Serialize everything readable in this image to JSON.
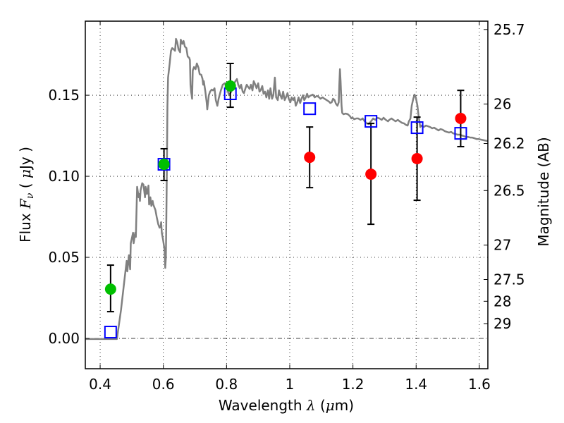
{
  "chart_data": {
    "type": "scatter",
    "title": "",
    "xlabel": "Wavelength  λ (μm)",
    "xlabel_parts": {
      "prefix": "Wavelength  ",
      "symbol": "λ",
      "suffix_open": " (",
      "unit_symbol": "μ",
      "unit_rest": "m)"
    },
    "ylabel": "Flux  Fν  ( μJy )",
    "ylabel_parts": {
      "prefix": "Flux  ",
      "symbol": "F",
      "subscript": "ν",
      "mid": "  ( ",
      "unit_symbol": "μ",
      "unit_rest": "Jy )"
    },
    "ylabel_right": "Magnitude (AB)",
    "xlim": [
      0.353,
      1.627
    ],
    "ylim": [
      -0.0187,
      0.1957
    ],
    "grid": true,
    "legend": "none",
    "x_ticks": [
      {
        "value": 0.4,
        "label": "0.4"
      },
      {
        "value": 0.6,
        "label": "0.6"
      },
      {
        "value": 0.8,
        "label": "0.8"
      },
      {
        "value": 1.0,
        "label": "1"
      },
      {
        "value": 1.2,
        "label": "1.2"
      },
      {
        "value": 1.4,
        "label": "1.4"
      },
      {
        "value": 1.6,
        "label": "1.6"
      }
    ],
    "y_ticks": [
      {
        "value": 0.0,
        "label": "0.00"
      },
      {
        "value": 0.05,
        "label": "0.05"
      },
      {
        "value": 0.1,
        "label": "0.10"
      },
      {
        "value": 0.15,
        "label": "0.15"
      }
    ],
    "right_ticks": [
      {
        "mag": 25.7,
        "label": "25.7"
      },
      {
        "mag": 26.0,
        "label": "26"
      },
      {
        "mag": 26.2,
        "label": "26.2"
      },
      {
        "mag": 26.5,
        "label": "26.5"
      },
      {
        "mag": 27.0,
        "label": "27"
      },
      {
        "mag": 27.5,
        "label": "27.5"
      },
      {
        "mag": 28.0,
        "label": "28"
      },
      {
        "mag": 29.0,
        "label": "29"
      }
    ],
    "ab_zeropoint_ujy": 23.9,
    "colors": {
      "spectrum": "#808080",
      "green": "#00bf00",
      "red": "#ff0000",
      "blue": "#0000ff",
      "errorbar": "#000000"
    },
    "series": [
      {
        "name": "model spectrum",
        "kind": "line",
        "points": [
          [
            0.353,
            -0.0004
          ],
          [
            0.453,
            -0.0004
          ],
          [
            0.466,
            0.0174
          ],
          [
            0.48,
            0.0413
          ],
          [
            0.484,
            0.0478
          ],
          [
            0.486,
            0.0413
          ],
          [
            0.491,
            0.0513
          ],
          [
            0.495,
            0.0426
          ],
          [
            0.497,
            0.0587
          ],
          [
            0.504,
            0.0652
          ],
          [
            0.506,
            0.0587
          ],
          [
            0.511,
            0.0652
          ],
          [
            0.513,
            0.0626
          ],
          [
            0.517,
            0.0935
          ],
          [
            0.522,
            0.087
          ],
          [
            0.524,
            0.0891
          ],
          [
            0.526,
            0.0848
          ],
          [
            0.528,
            0.0913
          ],
          [
            0.533,
            0.0957
          ],
          [
            0.537,
            0.0948
          ],
          [
            0.542,
            0.087
          ],
          [
            0.544,
            0.0935
          ],
          [
            0.548,
            0.0891
          ],
          [
            0.553,
            0.0943
          ],
          [
            0.555,
            0.0826
          ],
          [
            0.559,
            0.087
          ],
          [
            0.562,
            0.0817
          ],
          [
            0.566,
            0.0848
          ],
          [
            0.568,
            0.0826
          ],
          [
            0.575,
            0.0791
          ],
          [
            0.579,
            0.0748
          ],
          [
            0.584,
            0.0704
          ],
          [
            0.588,
            0.0683
          ],
          [
            0.591,
            0.0687
          ],
          [
            0.593,
            0.0717
          ],
          [
            0.595,
            0.0652
          ],
          [
            0.599,
            0.0609
          ],
          [
            0.604,
            0.0543
          ],
          [
            0.606,
            0.0435
          ],
          [
            0.608,
            0.05
          ],
          [
            0.611,
            0.0998
          ],
          [
            0.613,
            0.1435
          ],
          [
            0.615,
            0.1609
          ],
          [
            0.62,
            0.1696
          ],
          [
            0.624,
            0.1774
          ],
          [
            0.628,
            0.1791
          ],
          [
            0.633,
            0.1783
          ],
          [
            0.637,
            0.1774
          ],
          [
            0.64,
            0.1848
          ],
          [
            0.644,
            0.1826
          ],
          [
            0.648,
            0.1783
          ],
          [
            0.653,
            0.1765
          ],
          [
            0.655,
            0.1843
          ],
          [
            0.66,
            0.1817
          ],
          [
            0.664,
            0.1835
          ],
          [
            0.668,
            0.18
          ],
          [
            0.673,
            0.1791
          ],
          [
            0.677,
            0.1739
          ],
          [
            0.682,
            0.173
          ],
          [
            0.684,
            0.1717
          ],
          [
            0.686,
            0.1565
          ],
          [
            0.688,
            0.1522
          ],
          [
            0.691,
            0.1478
          ],
          [
            0.693,
            0.1652
          ],
          [
            0.697,
            0.1674
          ],
          [
            0.702,
            0.1661
          ],
          [
            0.706,
            0.1696
          ],
          [
            0.711,
            0.167
          ],
          [
            0.715,
            0.163
          ],
          [
            0.72,
            0.1626
          ],
          [
            0.724,
            0.16
          ],
          [
            0.726,
            0.1565
          ],
          [
            0.728,
            0.1587
          ],
          [
            0.733,
            0.1522
          ],
          [
            0.737,
            0.1457
          ],
          [
            0.739,
            0.1413
          ],
          [
            0.744,
            0.15
          ],
          [
            0.748,
            0.1522
          ],
          [
            0.753,
            0.1535
          ],
          [
            0.757,
            0.153
          ],
          [
            0.762,
            0.1543
          ],
          [
            0.766,
            0.147
          ],
          [
            0.771,
            0.1435
          ],
          [
            0.775,
            0.1478
          ],
          [
            0.782,
            0.153
          ],
          [
            0.788,
            0.1565
          ],
          [
            0.795,
            0.1574
          ],
          [
            0.802,
            0.1539
          ],
          [
            0.808,
            0.15
          ],
          [
            0.815,
            0.1522
          ],
          [
            0.822,
            0.1565
          ],
          [
            0.828,
            0.1587
          ],
          [
            0.833,
            0.16
          ],
          [
            0.837,
            0.1565
          ],
          [
            0.842,
            0.1543
          ],
          [
            0.846,
            0.1565
          ],
          [
            0.851,
            0.1522
          ],
          [
            0.855,
            0.1513
          ],
          [
            0.86,
            0.1543
          ],
          [
            0.864,
            0.1565
          ],
          [
            0.868,
            0.1552
          ],
          [
            0.873,
            0.1539
          ],
          [
            0.877,
            0.1565
          ],
          [
            0.882,
            0.153
          ],
          [
            0.886,
            0.1587
          ],
          [
            0.891,
            0.1565
          ],
          [
            0.895,
            0.1543
          ],
          [
            0.9,
            0.1574
          ],
          [
            0.904,
            0.1522
          ],
          [
            0.908,
            0.153
          ],
          [
            0.913,
            0.1557
          ],
          [
            0.917,
            0.1509
          ],
          [
            0.922,
            0.1522
          ],
          [
            0.926,
            0.1487
          ],
          [
            0.931,
            0.153
          ],
          [
            0.935,
            0.1478
          ],
          [
            0.939,
            0.1543
          ],
          [
            0.944,
            0.1478
          ],
          [
            0.948,
            0.15
          ],
          [
            0.953,
            0.1609
          ],
          [
            0.957,
            0.1487
          ],
          [
            0.962,
            0.147
          ],
          [
            0.966,
            0.153
          ],
          [
            0.971,
            0.1496
          ],
          [
            0.975,
            0.1478
          ],
          [
            0.979,
            0.1522
          ],
          [
            0.984,
            0.147
          ],
          [
            0.988,
            0.1487
          ],
          [
            0.993,
            0.1513
          ],
          [
            0.997,
            0.1478
          ],
          [
            1.002,
            0.1457
          ],
          [
            1.006,
            0.1487
          ],
          [
            1.011,
            0.147
          ],
          [
            1.015,
            0.1487
          ],
          [
            1.019,
            0.1435
          ],
          [
            1.024,
            0.1457
          ],
          [
            1.028,
            0.1487
          ],
          [
            1.033,
            0.1452
          ],
          [
            1.037,
            0.1478
          ],
          [
            1.042,
            0.15
          ],
          [
            1.046,
            0.147
          ],
          [
            1.051,
            0.1487
          ],
          [
            1.055,
            0.1509
          ],
          [
            1.059,
            0.1487
          ],
          [
            1.064,
            0.1496
          ],
          [
            1.068,
            0.15
          ],
          [
            1.073,
            0.1504
          ],
          [
            1.079,
            0.1487
          ],
          [
            1.086,
            0.1496
          ],
          [
            1.093,
            0.1487
          ],
          [
            1.097,
            0.1478
          ],
          [
            1.104,
            0.1487
          ],
          [
            1.11,
            0.1478
          ],
          [
            1.117,
            0.147
          ],
          [
            1.124,
            0.1461
          ],
          [
            1.128,
            0.1452
          ],
          [
            1.133,
            0.1457
          ],
          [
            1.137,
            0.1478
          ],
          [
            1.142,
            0.147
          ],
          [
            1.146,
            0.1448
          ],
          [
            1.151,
            0.1435
          ],
          [
            1.155,
            0.1457
          ],
          [
            1.157,
            0.1565
          ],
          [
            1.159,
            0.1661
          ],
          [
            1.161,
            0.1587
          ],
          [
            1.164,
            0.1435
          ],
          [
            1.166,
            0.1391
          ],
          [
            1.17,
            0.1383
          ],
          [
            1.177,
            0.1387
          ],
          [
            1.184,
            0.1383
          ],
          [
            1.191,
            0.137
          ],
          [
            1.195,
            0.1357
          ],
          [
            1.199,
            0.1361
          ],
          [
            1.204,
            0.1352
          ],
          [
            1.211,
            0.1357
          ],
          [
            1.217,
            0.1357
          ],
          [
            1.224,
            0.1348
          ],
          [
            1.231,
            0.1357
          ],
          [
            1.237,
            0.1339
          ],
          [
            1.244,
            0.1326
          ],
          [
            1.251,
            0.1322
          ],
          [
            1.257,
            0.1339
          ],
          [
            1.264,
            0.1357
          ],
          [
            1.271,
            0.1348
          ],
          [
            1.277,
            0.1361
          ],
          [
            1.284,
            0.1357
          ],
          [
            1.291,
            0.1348
          ],
          [
            1.297,
            0.1361
          ],
          [
            1.304,
            0.1348
          ],
          [
            1.311,
            0.1339
          ],
          [
            1.315,
            0.1348
          ],
          [
            1.322,
            0.1357
          ],
          [
            1.328,
            0.1348
          ],
          [
            1.335,
            0.1339
          ],
          [
            1.342,
            0.1348
          ],
          [
            1.348,
            0.1339
          ],
          [
            1.355,
            0.133
          ],
          [
            1.362,
            0.1326
          ],
          [
            1.368,
            0.1317
          ],
          [
            1.373,
            0.1313
          ],
          [
            1.377,
            0.1339
          ],
          [
            1.382,
            0.1357
          ],
          [
            1.386,
            0.1435
          ],
          [
            1.391,
            0.1478
          ],
          [
            1.395,
            0.1504
          ],
          [
            1.399,
            0.1487
          ],
          [
            1.404,
            0.1435
          ],
          [
            1.408,
            0.137
          ],
          [
            1.413,
            0.1304
          ],
          [
            1.417,
            0.1313
          ],
          [
            1.424,
            0.1304
          ],
          [
            1.431,
            0.1313
          ],
          [
            1.437,
            0.1309
          ],
          [
            1.444,
            0.1304
          ],
          [
            1.451,
            0.1296
          ],
          [
            1.457,
            0.13
          ],
          [
            1.464,
            0.1291
          ],
          [
            1.471,
            0.1283
          ],
          [
            1.477,
            0.1291
          ],
          [
            1.484,
            0.1287
          ],
          [
            1.491,
            0.1278
          ],
          [
            1.497,
            0.1274
          ],
          [
            1.504,
            0.127
          ],
          [
            1.511,
            0.1274
          ],
          [
            1.517,
            0.1265
          ],
          [
            1.524,
            0.1261
          ],
          [
            1.531,
            0.1257
          ],
          [
            1.537,
            0.1257
          ],
          [
            1.544,
            0.1252
          ],
          [
            1.551,
            0.1248
          ],
          [
            1.557,
            0.1243
          ],
          [
            1.564,
            0.1243
          ],
          [
            1.571,
            0.1239
          ],
          [
            1.577,
            0.1239
          ],
          [
            1.584,
            0.1235
          ],
          [
            1.591,
            0.123
          ],
          [
            1.597,
            0.123
          ],
          [
            1.606,
            0.1226
          ],
          [
            1.627,
            0.1217
          ]
        ]
      },
      {
        "name": "observed (green)",
        "kind": "errorbar",
        "marker": "circle",
        "x": [
          0.433,
          0.602,
          0.812
        ],
        "y": [
          0.0304,
          0.1074,
          0.1557
        ],
        "y_low": [
          0.0165,
          0.0974,
          0.1426
        ],
        "y_high": [
          0.0452,
          0.117,
          0.1696
        ]
      },
      {
        "name": "observed (red)",
        "kind": "errorbar",
        "marker": "circle",
        "x": [
          1.063,
          1.257,
          1.403,
          1.541
        ],
        "y": [
          0.1117,
          0.1013,
          0.1109,
          0.1357
        ],
        "y_low": [
          0.093,
          0.0704,
          0.0852,
          0.1183
        ],
        "y_high": [
          0.1304,
          0.1326,
          0.1365,
          0.153
        ]
      },
      {
        "name": "model photometry",
        "kind": "scatter",
        "marker": "open-square",
        "x": [
          0.433,
          0.602,
          0.812,
          1.063,
          1.257,
          1.403,
          1.541
        ],
        "y": [
          0.0039,
          0.1074,
          0.1509,
          0.1417,
          0.1339,
          0.13,
          0.1265
        ]
      }
    ]
  }
}
